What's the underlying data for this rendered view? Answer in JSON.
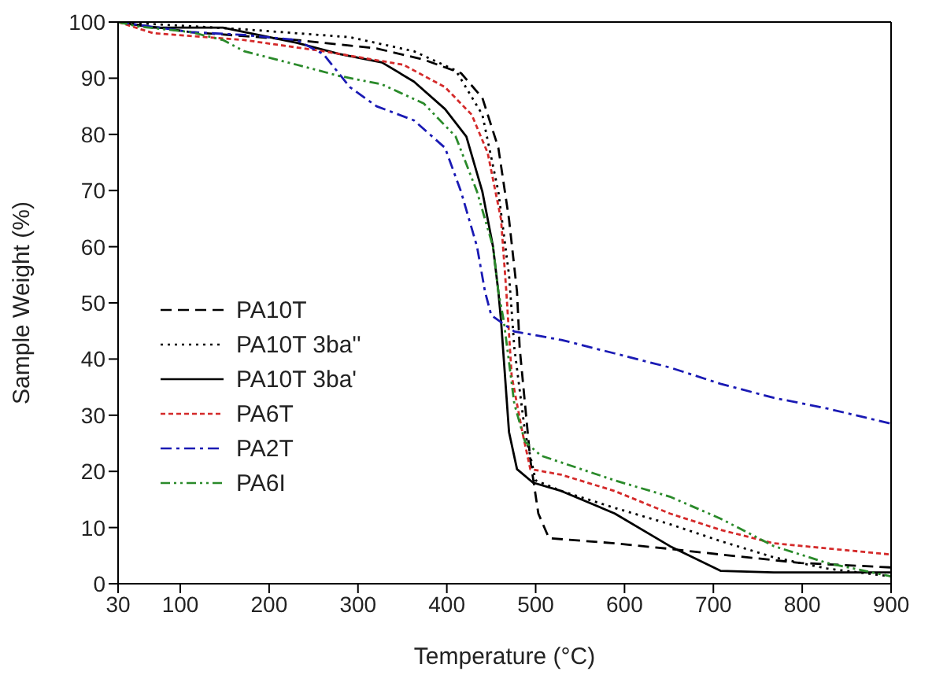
{
  "chart_data": {
    "type": "line",
    "xlabel": "Temperature (°C)",
    "ylabel": "Sample Weight (%)",
    "xlim": [
      30,
      900
    ],
    "xticks": [
      30,
      100,
      200,
      300,
      400,
      500,
      600,
      700,
      800,
      900
    ],
    "ylim": [
      0,
      100
    ],
    "yticks": [
      0,
      10,
      20,
      30,
      40,
      50,
      60,
      70,
      80,
      90,
      100
    ],
    "grid": false,
    "legend": "left",
    "marker": "none",
    "series": [
      {
        "name": "PA10T",
        "color": "#000000",
        "line_style": "dashed",
        "x": [
          30,
          112,
          231,
          321,
          374,
          416,
          440,
          458,
          470,
          479,
          482,
          494,
          503,
          515,
          589,
          651,
          708,
          798,
          900
        ],
        "values": [
          100,
          98.2,
          96.8,
          95.3,
          93.3,
          90.9,
          86.5,
          77.6,
          64.9,
          52,
          42,
          22,
          12.5,
          8.1,
          7.2,
          6.2,
          5.2,
          3.7,
          2.9
        ]
      },
      {
        "name": "PA10T 3ba''",
        "color": "#000000",
        "line_style": "dotted",
        "x": [
          30,
          172,
          291,
          363,
          410,
          440,
          458,
          470,
          476,
          488,
          500,
          529,
          589,
          651,
          708,
          768,
          828,
          900
        ],
        "values": [
          100,
          98.7,
          97.3,
          94.8,
          91.4,
          83.5,
          69.8,
          55,
          42,
          27,
          18.4,
          16.5,
          13.5,
          10.6,
          7.6,
          4.7,
          2.7,
          1.3
        ]
      },
      {
        "name": "PA10T 3ba'",
        "color": "#000000",
        "line_style": "solid",
        "x": [
          30,
          70,
          148,
          231,
          279,
          327,
          363,
          398,
          422,
          440,
          452,
          458,
          461,
          470,
          479,
          497,
          529,
          589,
          651,
          708,
          768,
          900
        ],
        "values": [
          100,
          99,
          99,
          96.3,
          94.3,
          92.8,
          89.4,
          84.5,
          79.6,
          69.8,
          60,
          52,
          46.9,
          27,
          20.4,
          18,
          16.5,
          12.5,
          6.7,
          2.3,
          2,
          2
        ]
      },
      {
        "name": "PA6T",
        "color": "#d42a2a",
        "line_style": "short-dashed",
        "x": [
          30,
          70,
          172,
          261,
          351,
          398,
          428,
          446,
          461,
          467,
          473,
          485,
          494,
          529,
          589,
          651,
          708,
          768,
          900
        ],
        "values": [
          100,
          98,
          96.8,
          94.8,
          92.4,
          88.4,
          83.5,
          76.7,
          64.9,
          52,
          37,
          27,
          20.4,
          19.4,
          16.5,
          12.5,
          9.6,
          7.2,
          5.2
        ]
      },
      {
        "name": "PA2T",
        "color": "#1a1ab4",
        "line_style": "dashdot",
        "x": [
          30,
          53,
          112,
          172,
          231,
          261,
          291,
          321,
          363,
          398,
          416,
          434,
          443,
          450,
          476,
          529,
          589,
          651,
          708,
          768,
          828,
          900
        ],
        "values": [
          100,
          99.5,
          98.2,
          97.7,
          96.8,
          94.3,
          88.4,
          85,
          82.5,
          77.6,
          69.8,
          60,
          52,
          47.8,
          44.9,
          43.4,
          41,
          38.5,
          35.6,
          33.1,
          31.2,
          28.5
        ]
      },
      {
        "name": "PA6I",
        "color": "#2a8a2a",
        "line_style": "dashdotdot",
        "x": [
          30,
          53,
          112,
          148,
          172,
          231,
          279,
          327,
          374,
          410,
          434,
          452,
          458,
          464,
          476,
          488,
          506,
          589,
          651,
          708,
          768,
          828,
          900
        ],
        "values": [
          100,
          99.2,
          98.2,
          96.8,
          94.8,
          92.4,
          90.4,
          88.9,
          85.5,
          79.6,
          69.8,
          60,
          52,
          46.9,
          32,
          25.3,
          22.8,
          18.4,
          15.5,
          11.6,
          6.7,
          3.7,
          1.3
        ]
      }
    ]
  }
}
